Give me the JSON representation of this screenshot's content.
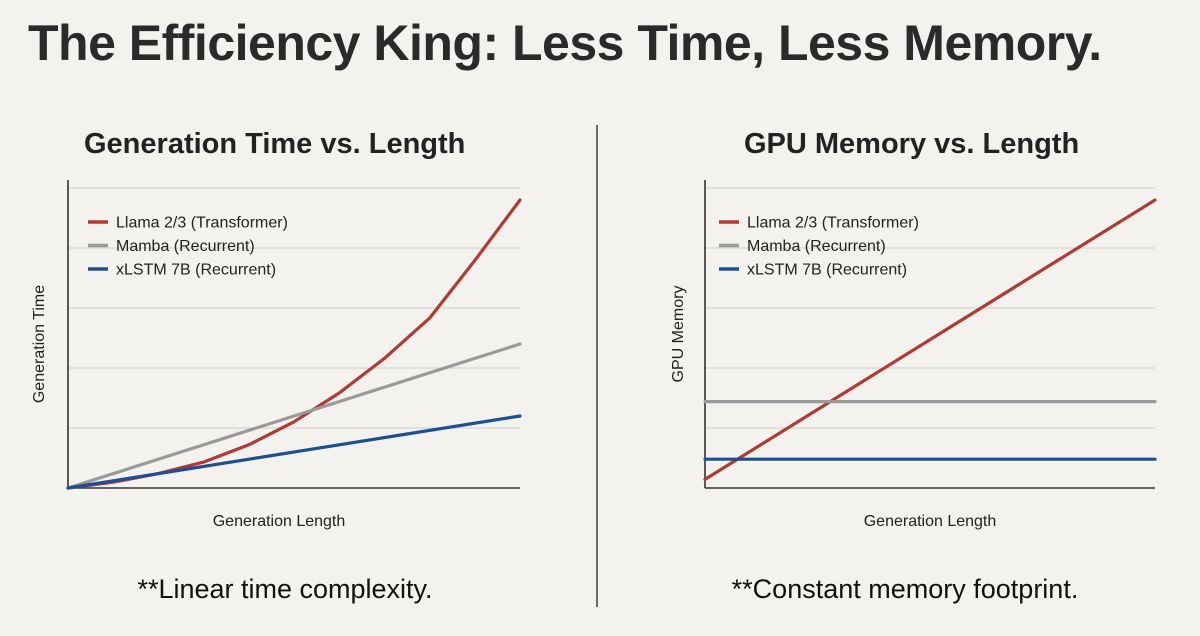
{
  "title": "The Efficiency King: Less Time, Less Memory.",
  "colors": {
    "llama": "#b13a33",
    "mamba": "#9a9a9a",
    "xlstm": "#1f4f93",
    "grid": "#cfcfcf",
    "axis": "#333333"
  },
  "panels": [
    {
      "title": "Generation Time vs. Length",
      "caption": "**Linear time complexity.",
      "chart_data": {
        "type": "line",
        "title": "Generation Time vs. Length",
        "xlabel": "Generation Length",
        "ylabel": "Generation Time",
        "xlim": [
          0,
          1
        ],
        "ylim": [
          0,
          1
        ],
        "grid": true,
        "grid_lines": 5,
        "legend_position": "top-left",
        "series": [
          {
            "name": "Llama 2/3 (Transformer)",
            "color_key": "llama",
            "x": [
              0,
              0.1,
              0.2,
              0.3,
              0.4,
              0.5,
              0.6,
              0.7,
              0.8,
              0.9,
              1.0
            ],
            "y": [
              0,
              0.02,
              0.05,
              0.09,
              0.15,
              0.23,
              0.33,
              0.45,
              0.59,
              0.79,
              1.0
            ]
          },
          {
            "name": "Mamba (Recurrent)",
            "color_key": "mamba",
            "x": [
              0,
              1.0
            ],
            "y": [
              0,
              0.5
            ]
          },
          {
            "name": "xLSTM 7B (Recurrent)",
            "color_key": "xlstm",
            "x": [
              0,
              1.0
            ],
            "y": [
              0,
              0.25
            ]
          }
        ]
      }
    },
    {
      "title": "GPU Memory vs. Length",
      "caption": "**Constant memory footprint.",
      "chart_data": {
        "type": "line",
        "title": "GPU Memory vs. Length",
        "xlabel": "Generation Length",
        "ylabel": "GPU Memory",
        "xlim": [
          0,
          1
        ],
        "ylim": [
          0,
          1
        ],
        "grid": true,
        "grid_lines": 5,
        "legend_position": "top-left",
        "series": [
          {
            "name": "Llama 2/3 (Transformer)",
            "color_key": "llama",
            "x": [
              0,
              1.0
            ],
            "y": [
              0.03,
              1.0
            ]
          },
          {
            "name": "Mamba (Recurrent)",
            "color_key": "mamba",
            "x": [
              0,
              1.0
            ],
            "y": [
              0.3,
              0.3
            ]
          },
          {
            "name": "xLSTM 7B (Recurrent)",
            "color_key": "xlstm",
            "x": [
              0,
              1.0
            ],
            "y": [
              0.1,
              0.1
            ]
          }
        ]
      }
    }
  ]
}
